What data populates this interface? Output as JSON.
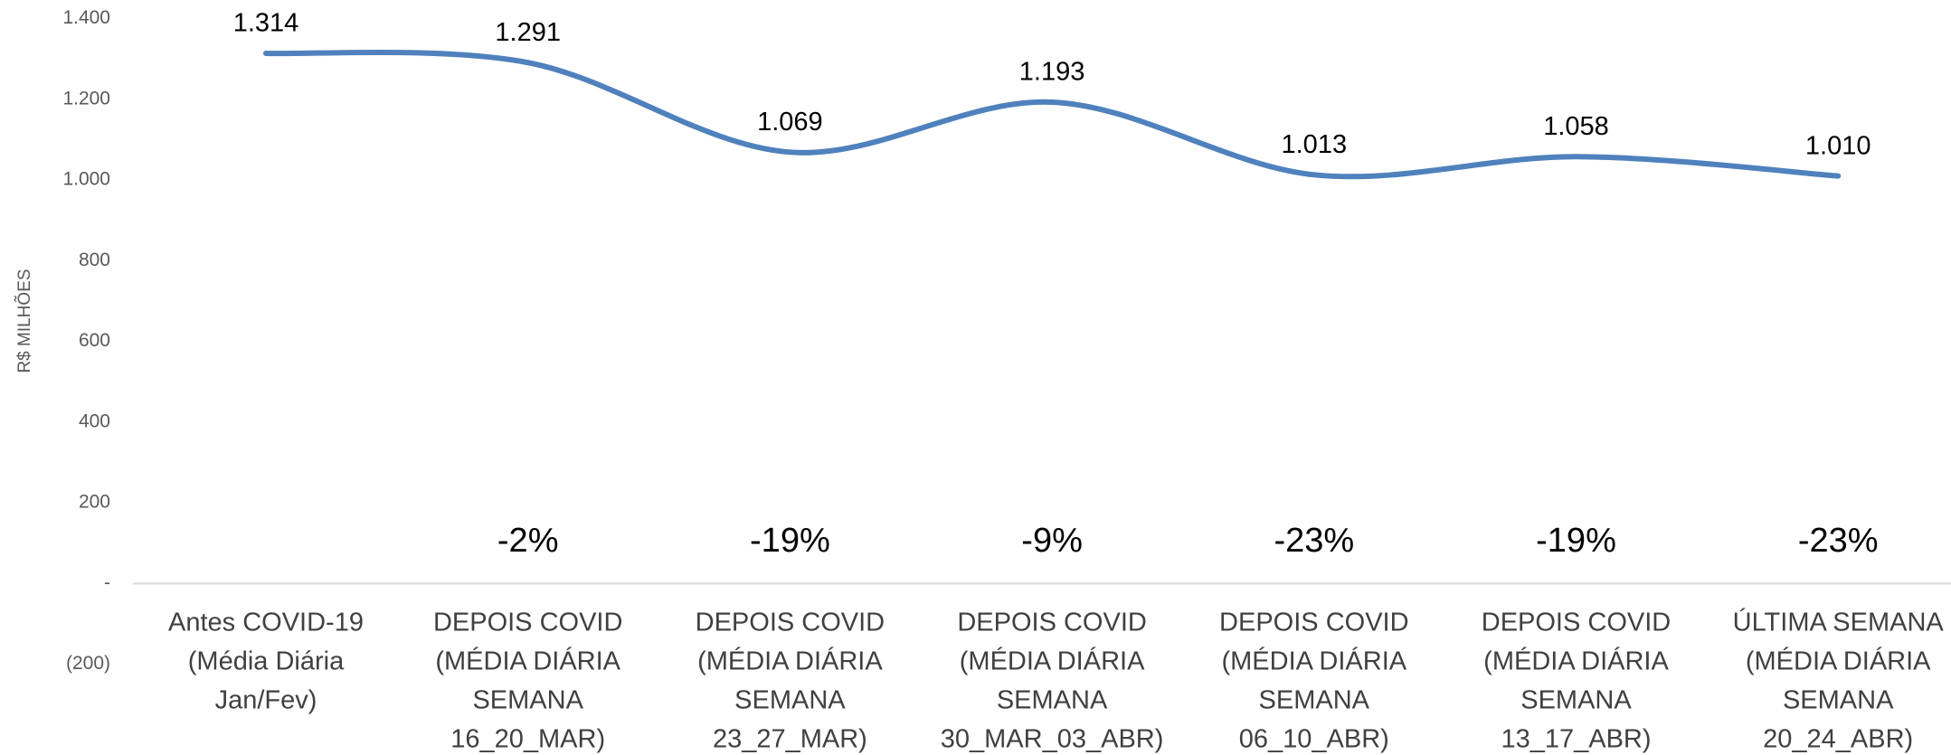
{
  "chart_data": {
    "type": "line",
    "y_axis_label": "R$ MILHÕES",
    "categories": [
      [
        "Antes COVID-19",
        "(Média Diária",
        "Jan/Fev)"
      ],
      [
        "DEPOIS COVID",
        "(MÉDIA DIÁRIA",
        "SEMANA",
        "16_20_MAR)"
      ],
      [
        "DEPOIS COVID",
        "(MÉDIA DIÁRIA",
        "SEMANA",
        "23_27_MAR)"
      ],
      [
        "DEPOIS COVID",
        "(MÉDIA DIÁRIA",
        "SEMANA",
        "30_MAR_03_ABR)"
      ],
      [
        "DEPOIS COVID",
        "(MÉDIA DIÁRIA",
        "SEMANA",
        "06_10_ABR)"
      ],
      [
        "DEPOIS COVID",
        "(MÉDIA DIÁRIA",
        "SEMANA",
        "13_17_ABR)"
      ],
      [
        "ÚLTIMA SEMANA",
        "(MÉDIA DIÁRIA",
        "SEMANA",
        "20_24_ABR)"
      ]
    ],
    "series": [
      {
        "color": "#4f81bd",
        "values": [
          1314,
          1291,
          1069,
          1193,
          1013,
          1058,
          1010
        ],
        "value_labels": [
          "1.314",
          "1.291",
          "1.069",
          "1.193",
          "1.013",
          "1.058",
          "1.010"
        ]
      }
    ],
    "annotations": [
      "-2%",
      "-19%",
      "-9%",
      "-23%",
      "-19%",
      "-23%"
    ],
    "ylim": [
      -200,
      1400
    ],
    "yticks": [
      {
        "value": -200,
        "label": "(200)"
      },
      {
        "value": 0,
        "label": "-"
      },
      200,
      400,
      600,
      800,
      {
        "value": 1000,
        "label": "1.000"
      },
      {
        "value": 1200,
        "label": "1.200"
      },
      {
        "value": 1400,
        "label": "1.400"
      }
    ],
    "smooth": true
  }
}
